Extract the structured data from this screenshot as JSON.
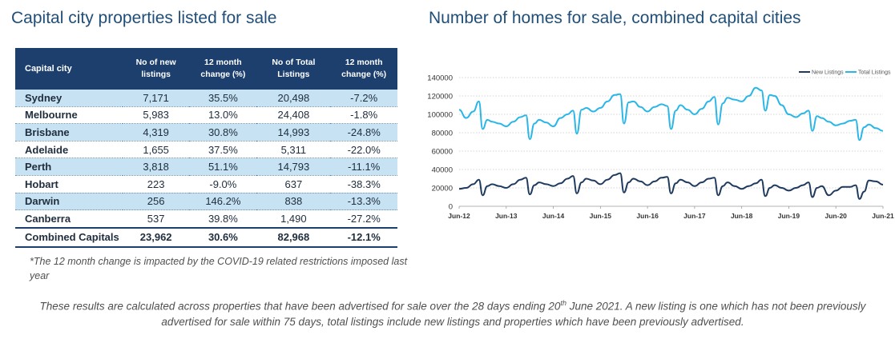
{
  "left_title": "Capital city properties listed for sale",
  "right_title": "Number of homes for sale, combined capital cities",
  "table": {
    "headers": [
      "Capital city",
      "No of new listings",
      "12 month change (%)",
      "No of Total Listings",
      "12 month change (%)"
    ],
    "rows": [
      [
        "Sydney",
        "7,171",
        "35.5%",
        "20,498",
        "-7.2%"
      ],
      [
        "Melbourne",
        "5,983",
        "13.0%",
        "24,408",
        "-1.8%"
      ],
      [
        "Brisbane",
        "4,319",
        "30.8%",
        "14,993",
        "-24.8%"
      ],
      [
        "Adelaide",
        "1,655",
        "37.5%",
        "5,311",
        "-22.0%"
      ],
      [
        "Perth",
        "3,818",
        "51.1%",
        "14,793",
        "-11.1%"
      ],
      [
        "Hobart",
        "223",
        "-9.0%",
        "637",
        "-38.3%"
      ],
      [
        "Darwin",
        "256",
        "146.2%",
        "838",
        "-13.3%"
      ],
      [
        "Canberra",
        "537",
        "39.8%",
        "1,490",
        "-27.2%"
      ]
    ],
    "total": [
      "Combined Capitals",
      "23,962",
      "30.6%",
      "82,968",
      "-12.1%"
    ]
  },
  "footnote": "*The 12 month change is impacted by the COVID-19 related restrictions imposed last year",
  "bottom_note": {
    "part1": "These results are calculated across properties that have been advertised for sale over the 28 days ending 20",
    "sup": "th",
    "part2": " June 2021.  A new listing is one which has not been previously advertised for sale within 75 days, total listings include new listings and properties which have been previously advertised."
  },
  "chart_data": {
    "type": "line",
    "title": "Number of homes for sale, combined capital cities",
    "legend_position": "top-right",
    "ylim": [
      0,
      140000
    ],
    "y_ticks": [
      0,
      20000,
      40000,
      60000,
      80000,
      100000,
      120000,
      140000
    ],
    "y_tick_labels": [
      "0",
      "20000",
      "40000",
      "60000",
      "80000",
      "100000",
      "120000",
      "140000"
    ],
    "x_ticks": [
      "Jun-12",
      "Jun-13",
      "Jun-14",
      "Jun-15",
      "Jun-16",
      "Jun-17",
      "Jun-18",
      "Jun-19",
      "Jun-20",
      "Jun-21"
    ],
    "grid": "horizontal dotted",
    "colors": {
      "new_listings": "#1f3a5f",
      "total_listings": "#29b6e8"
    },
    "series": [
      {
        "name": "New Listings",
        "x": [
          2012.45,
          2012.6,
          2012.75,
          2012.87,
          2012.95,
          2013.05,
          2013.15,
          2013.3,
          2013.45,
          2013.6,
          2013.75,
          2013.87,
          2013.95,
          2014.05,
          2014.15,
          2014.3,
          2014.45,
          2014.6,
          2014.75,
          2014.87,
          2014.95,
          2015.05,
          2015.15,
          2015.3,
          2015.45,
          2015.6,
          2015.75,
          2015.87,
          2015.95,
          2016.05,
          2016.15,
          2016.3,
          2016.45,
          2016.6,
          2016.75,
          2016.87,
          2016.95,
          2017.05,
          2017.15,
          2017.3,
          2017.45,
          2017.6,
          2017.75,
          2017.87,
          2017.95,
          2018.05,
          2018.15,
          2018.3,
          2018.45,
          2018.6,
          2018.75,
          2018.87,
          2018.95,
          2019.05,
          2019.15,
          2019.3,
          2019.45,
          2019.6,
          2019.75,
          2019.87,
          2019.95,
          2020.05,
          2020.15,
          2020.3,
          2020.45,
          2020.6,
          2020.75,
          2020.87,
          2020.95,
          2021.05,
          2021.15,
          2021.3,
          2021.45
        ],
        "values": [
          19000,
          20000,
          24000,
          29000,
          12000,
          22000,
          24000,
          22000,
          20000,
          24000,
          29000,
          31000,
          13000,
          23000,
          26000,
          24000,
          22000,
          25000,
          30000,
          33000,
          14000,
          26000,
          30000,
          28000,
          24000,
          29000,
          34000,
          36000,
          15000,
          26000,
          30000,
          27000,
          23000,
          27000,
          31000,
          32000,
          14000,
          25000,
          29000,
          26000,
          22000,
          26000,
          30000,
          31000,
          12000,
          22000,
          26000,
          22000,
          19000,
          22000,
          25000,
          29000,
          11000,
          20000,
          23000,
          20000,
          17000,
          20000,
          23000,
          26000,
          10000,
          20000,
          22000,
          12000,
          17000,
          21000,
          21000,
          23000,
          8000,
          16000,
          28000,
          27000,
          23500
        ]
      },
      {
        "name": "Total Listings",
        "x": [
          2012.45,
          2012.6,
          2012.75,
          2012.87,
          2012.95,
          2013.05,
          2013.15,
          2013.3,
          2013.45,
          2013.6,
          2013.75,
          2013.87,
          2013.95,
          2014.05,
          2014.15,
          2014.3,
          2014.45,
          2014.6,
          2014.75,
          2014.87,
          2014.95,
          2015.05,
          2015.15,
          2015.3,
          2015.45,
          2015.6,
          2015.75,
          2015.87,
          2015.95,
          2016.05,
          2016.15,
          2016.3,
          2016.45,
          2016.6,
          2016.75,
          2016.87,
          2016.95,
          2017.05,
          2017.15,
          2017.3,
          2017.45,
          2017.6,
          2017.75,
          2017.87,
          2017.95,
          2018.05,
          2018.15,
          2018.3,
          2018.45,
          2018.6,
          2018.75,
          2018.87,
          2018.95,
          2019.05,
          2019.15,
          2019.3,
          2019.45,
          2019.6,
          2019.75,
          2019.87,
          2019.95,
          2020.05,
          2020.15,
          2020.3,
          2020.45,
          2020.6,
          2020.75,
          2020.87,
          2020.95,
          2021.05,
          2021.15,
          2021.3,
          2021.45
        ],
        "values": [
          105000,
          96000,
          103000,
          114000,
          84000,
          94000,
          92000,
          90000,
          87000,
          92000,
          97000,
          99000,
          73000,
          90000,
          94000,
          91000,
          87000,
          96000,
          100000,
          104000,
          79000,
          105000,
          107000,
          103000,
          107000,
          114000,
          121000,
          122000,
          90000,
          113000,
          114000,
          108000,
          103000,
          108000,
          111000,
          109000,
          84000,
          104000,
          110000,
          105000,
          100000,
          106000,
          114000,
          119000,
          89000,
          112000,
          118000,
          116000,
          114000,
          120000,
          129000,
          126000,
          104000,
          121000,
          120000,
          110000,
          100000,
          97000,
          101000,
          104000,
          82000,
          98000,
          96000,
          92000,
          88000,
          90000,
          93000,
          94000,
          72000,
          86000,
          89000,
          85000,
          82000
        ]
      }
    ]
  }
}
